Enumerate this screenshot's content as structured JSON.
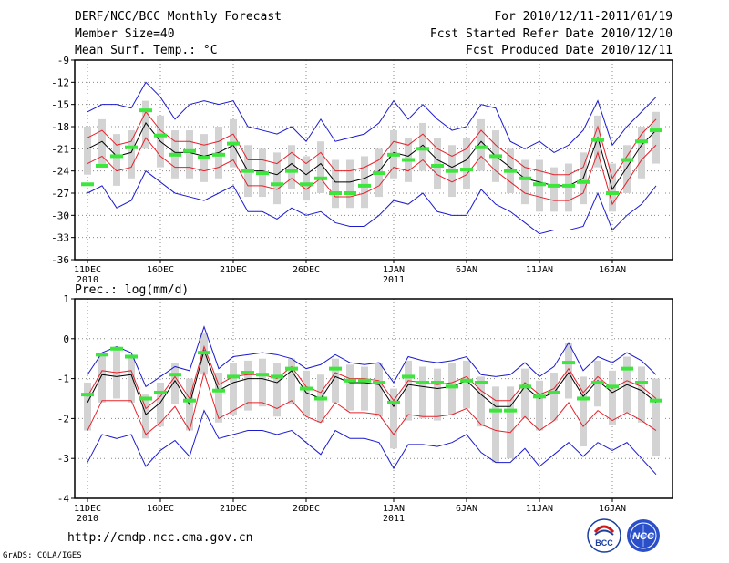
{
  "header": {
    "title": "DERF/NCC/BCC Monthly Forecast",
    "member_size": "Member Size=40",
    "variable": "Mean Surf. Temp.: °C",
    "fcst_period": "For 2010/12/11-2011/01/19",
    "started_date": "Fcst Started Refer Date 2010/12/10",
    "produced_date": "Fcst Produced Date 2010/12/11"
  },
  "footer": {
    "url": "http://cmdp.ncc.cma.gov.cn",
    "grads": "GrADS: COLA/IGES",
    "logo_left": "BCC",
    "logo_right": "NCC"
  },
  "colors": {
    "box": "#d3d3d3",
    "median": "#000000",
    "inner": "#e8202a",
    "outer": "#1a1ad0",
    "obs": "#3ce63c"
  },
  "chart_data": [
    {
      "type": "box-line",
      "title": "Mean Surf. Temp.: °C",
      "ylim": [
        -36,
        -9
      ],
      "yticks": [
        -36,
        -33,
        -30,
        -27,
        -24,
        -21,
        -18,
        -15,
        -12,
        -9
      ],
      "ytick_labels": [
        "-36",
        "-33",
        "-30",
        "-27",
        "-24",
        "-21",
        "-18",
        "-15",
        "-12",
        "-9"
      ],
      "xticks": [
        {
          "day": 1,
          "label": "11DEC",
          "sub": "2010"
        },
        {
          "day": 6,
          "label": "16DEC",
          "sub": ""
        },
        {
          "day": 11,
          "label": "21DEC",
          "sub": ""
        },
        {
          "day": 16,
          "label": "26DEC",
          "sub": ""
        },
        {
          "day": 22,
          "label": "1JAN",
          "sub": "2011"
        },
        {
          "day": 27,
          "label": "6JAN",
          "sub": ""
        },
        {
          "day": 32,
          "label": "11JAN",
          "sub": ""
        },
        {
          "day": 37,
          "label": "16JAN",
          "sub": ""
        }
      ],
      "days": [
        1,
        2,
        3,
        4,
        5,
        6,
        7,
        8,
        9,
        10,
        11,
        12,
        13,
        14,
        15,
        16,
        17,
        18,
        19,
        20,
        21,
        22,
        23,
        24,
        25,
        26,
        27,
        28,
        29,
        30,
        31,
        32,
        33,
        34,
        35,
        36,
        37,
        38,
        39,
        40
      ],
      "median": [
        -21.0,
        -20.0,
        -22.0,
        -21.5,
        -17.5,
        -20.0,
        -21.5,
        -21.5,
        -22.0,
        -21.5,
        -20.5,
        -24.0,
        -24.0,
        -24.5,
        -23.0,
        -24.5,
        -23.0,
        -25.5,
        -25.5,
        -25.0,
        -24.0,
        -21.5,
        -22.0,
        -20.5,
        -22.5,
        -23.5,
        -22.5,
        -20.0,
        -22.0,
        -23.5,
        -25.0,
        -25.5,
        -26.0,
        -26.0,
        -25.0,
        -19.5,
        -26.5,
        -23.5,
        -20.5,
        -18.5
      ],
      "upper_inner": [
        -19.5,
        -18.5,
        -20.5,
        -20.0,
        -16.0,
        -18.5,
        -20.0,
        -20.0,
        -20.5,
        -20.0,
        -19.0,
        -22.5,
        -22.5,
        -23.0,
        -21.5,
        -23.0,
        -21.5,
        -24.0,
        -24.0,
        -23.5,
        -22.5,
        -20.0,
        -20.5,
        -19.0,
        -21.0,
        -22.0,
        -21.0,
        -18.5,
        -20.5,
        -22.0,
        -23.5,
        -24.0,
        -24.5,
        -24.5,
        -23.5,
        -18.0,
        -25.0,
        -22.0,
        -19.0,
        -17.0
      ],
      "lower_inner": [
        -23.0,
        -22.0,
        -24.0,
        -23.5,
        -19.5,
        -22.0,
        -23.5,
        -23.5,
        -24.0,
        -23.5,
        -22.5,
        -26.0,
        -26.0,
        -26.5,
        -25.0,
        -26.5,
        -25.0,
        -27.5,
        -27.5,
        -27.0,
        -26.0,
        -23.5,
        -24.0,
        -22.5,
        -24.5,
        -25.5,
        -24.5,
        -22.0,
        -24.0,
        -25.5,
        -27.0,
        -27.5,
        -28.0,
        -28.0,
        -27.0,
        -21.5,
        -28.5,
        -25.5,
        -22.5,
        -20.5
      ],
      "upper_outer": [
        -16.0,
        -15.0,
        -15.0,
        -15.5,
        -12.0,
        -14.0,
        -17.0,
        -15.0,
        -14.5,
        -15.0,
        -14.5,
        -18.0,
        -18.5,
        -19.0,
        -18.0,
        -20.0,
        -17.0,
        -20.0,
        -19.5,
        -19.0,
        -17.5,
        -14.5,
        -17.0,
        -15.0,
        -17.0,
        -18.5,
        -18.0,
        -15.0,
        -15.5,
        -20.0,
        -21.0,
        -20.0,
        -21.5,
        -20.5,
        -18.5,
        -14.5,
        -20.5,
        -18.0,
        -16.0,
        -14.0
      ],
      "lower_outer": [
        -27.0,
        -26.0,
        -29.0,
        -28.0,
        -24.0,
        -25.5,
        -27.0,
        -27.5,
        -28.0,
        -27.0,
        -26.0,
        -29.5,
        -29.5,
        -30.5,
        -29.0,
        -30.0,
        -29.5,
        -31.0,
        -31.5,
        -31.5,
        -30.0,
        -28.0,
        -28.5,
        -27.0,
        -29.5,
        -30.0,
        -30.0,
        -26.5,
        -28.5,
        -29.5,
        -31.0,
        -32.5,
        -32.0,
        -32.0,
        -31.5,
        -27.0,
        -32.0,
        -30.0,
        -28.5,
        -26.0
      ],
      "box_top": [
        -18.0,
        -17.0,
        -19.0,
        -18.5,
        -14.5,
        -16.5,
        -18.5,
        -18.5,
        -19.0,
        -18.0,
        -17.0,
        -20.5,
        -21.0,
        -21.5,
        -20.5,
        -22.0,
        -20.0,
        -22.5,
        -22.5,
        -22.0,
        -21.0,
        -18.5,
        -19.5,
        -17.5,
        -19.5,
        -20.5,
        -19.5,
        -17.0,
        -18.5,
        -21.0,
        -22.5,
        -22.5,
        -23.5,
        -23.0,
        -21.5,
        -16.5,
        -23.0,
        -20.5,
        -18.0,
        -16.0
      ],
      "box_bottom": [
        -24.5,
        -23.5,
        -26.0,
        -25.0,
        -21.0,
        -23.5,
        -25.0,
        -25.0,
        -25.5,
        -25.0,
        -23.5,
        -27.5,
        -27.5,
        -28.5,
        -26.5,
        -28.0,
        -27.0,
        -29.0,
        -29.0,
        -29.0,
        -27.5,
        -25.0,
        -25.5,
        -24.0,
        -26.5,
        -27.5,
        -26.5,
        -24.0,
        -25.5,
        -27.0,
        -28.5,
        -29.5,
        -29.5,
        -29.5,
        -28.5,
        -23.5,
        -29.5,
        -27.0,
        -25.0,
        -23.0
      ],
      "observed": [
        -25.8,
        -23.3,
        -22.0,
        -20.8,
        -15.8,
        -19.2,
        -21.8,
        -21.3,
        -22.2,
        -21.8,
        -20.3,
        -24.0,
        -24.3,
        -25.8,
        -24.0,
        -25.8,
        -25.0,
        -27.0,
        -27.0,
        -26.0,
        -24.3,
        -21.8,
        -22.5,
        -21.0,
        -23.3,
        -24.0,
        -23.8,
        -20.8,
        -22.0,
        -24.0,
        -25.0,
        -25.8,
        -26.0,
        -26.0,
        -25.5,
        -19.8,
        -27.0,
        -22.5,
        -20.0,
        -18.5
      ]
    },
    {
      "type": "box-line",
      "title": "Prec.: log(mm/d)",
      "ylim": [
        -4,
        1
      ],
      "yticks": [
        -4,
        -3,
        -2,
        -1,
        0,
        1
      ],
      "ytick_labels": [
        "-4",
        "-3",
        "-2",
        "-1",
        "0",
        "1"
      ],
      "xticks": [
        {
          "day": 1,
          "label": "11DEC",
          "sub": "2010"
        },
        {
          "day": 6,
          "label": "16DEC",
          "sub": ""
        },
        {
          "day": 11,
          "label": "21DEC",
          "sub": ""
        },
        {
          "day": 16,
          "label": "26DEC",
          "sub": ""
        },
        {
          "day": 22,
          "label": "1JAN",
          "sub": "2011"
        },
        {
          "day": 27,
          "label": "6JAN",
          "sub": ""
        },
        {
          "day": 32,
          "label": "11JAN",
          "sub": ""
        },
        {
          "day": 37,
          "label": "16JAN",
          "sub": ""
        }
      ],
      "days": [
        1,
        2,
        3,
        4,
        5,
        6,
        7,
        8,
        9,
        10,
        11,
        12,
        13,
        14,
        15,
        16,
        17,
        18,
        19,
        20,
        21,
        22,
        23,
        24,
        25,
        26,
        27,
        28,
        29,
        30,
        31,
        32,
        33,
        34,
        35,
        36,
        37,
        38,
        39,
        40
      ],
      "median": [
        -1.6,
        -0.9,
        -0.95,
        -0.9,
        -1.9,
        -1.6,
        -1.05,
        -1.65,
        -0.3,
        -1.3,
        -1.1,
        -1.0,
        -1.0,
        -1.1,
        -0.8,
        -1.35,
        -1.5,
        -0.95,
        -1.1,
        -1.1,
        -1.15,
        -1.7,
        -1.15,
        -1.2,
        -1.25,
        -1.2,
        -1.05,
        -1.4,
        -1.7,
        -1.7,
        -1.2,
        -1.5,
        -1.35,
        -0.85,
        -1.45,
        -1.05,
        -1.35,
        -1.15,
        -1.3,
        -1.6
      ],
      "upper_inner": [
        -1.45,
        -0.8,
        -0.85,
        -0.8,
        -1.75,
        -1.45,
        -0.95,
        -1.5,
        -0.2,
        -1.15,
        -0.95,
        -0.9,
        -0.9,
        -1.0,
        -0.7,
        -1.2,
        -1.35,
        -0.85,
        -1.0,
        -1.0,
        -1.05,
        -1.55,
        -1.05,
        -1.1,
        -1.15,
        -1.1,
        -0.95,
        -1.3,
        -1.55,
        -1.55,
        -1.1,
        -1.4,
        -1.25,
        -0.75,
        -1.35,
        -0.95,
        -1.25,
        -1.05,
        -1.2,
        -1.5
      ],
      "lower_inner": [
        -2.3,
        -1.55,
        -1.55,
        -1.55,
        -2.4,
        -2.1,
        -1.7,
        -2.3,
        -0.85,
        -2.0,
        -1.8,
        -1.6,
        -1.6,
        -1.75,
        -1.55,
        -1.95,
        -2.1,
        -1.6,
        -1.85,
        -1.85,
        -1.9,
        -2.4,
        -1.9,
        -1.95,
        -1.95,
        -1.9,
        -1.75,
        -2.15,
        -2.3,
        -2.35,
        -1.95,
        -2.3,
        -2.05,
        -1.6,
        -2.2,
        -1.8,
        -2.05,
        -1.85,
        -2.05,
        -2.3
      ],
      "upper_outer": [
        -0.9,
        -0.35,
        -0.2,
        -0.35,
        -1.2,
        -0.95,
        -0.7,
        -0.8,
        0.3,
        -0.75,
        -0.45,
        -0.4,
        -0.35,
        -0.4,
        -0.5,
        -0.75,
        -0.65,
        -0.4,
        -0.6,
        -0.65,
        -0.6,
        -1.1,
        -0.45,
        -0.55,
        -0.6,
        -0.55,
        -0.45,
        -0.9,
        -0.95,
        -0.9,
        -0.6,
        -0.95,
        -0.7,
        -0.1,
        -0.8,
        -0.45,
        -0.6,
        -0.35,
        -0.55,
        -0.9
      ],
      "lower_outer": [
        -3.1,
        -2.4,
        -2.5,
        -2.4,
        -3.2,
        -2.8,
        -2.55,
        -2.95,
        -1.8,
        -2.5,
        -2.4,
        -2.3,
        -2.3,
        -2.4,
        -2.3,
        -2.6,
        -2.9,
        -2.3,
        -2.5,
        -2.5,
        -2.6,
        -3.25,
        -2.65,
        -2.65,
        -2.7,
        -2.6,
        -2.4,
        -2.85,
        -3.1,
        -3.1,
        -2.75,
        -3.2,
        -2.9,
        -2.6,
        -2.95,
        -2.6,
        -2.8,
        -2.6,
        -3.0,
        -3.4
      ],
      "box_top": [
        -1.1,
        -0.4,
        -0.2,
        -0.4,
        -1.4,
        -1.1,
        -0.6,
        -1.0,
        0.15,
        -0.85,
        -0.6,
        -0.55,
        -0.5,
        -0.6,
        -0.5,
        -0.8,
        -0.9,
        -0.5,
        -0.65,
        -0.7,
        -0.6,
        -1.25,
        -0.55,
        -0.7,
        -0.75,
        -0.6,
        -0.55,
        -0.95,
        -1.2,
        -1.2,
        -0.75,
        -1.05,
        -0.85,
        -0.1,
        -0.95,
        -0.55,
        -0.8,
        -0.45,
        -0.7,
        -1.0
      ],
      "box_bottom": [
        -2.3,
        -1.6,
        -1.5,
        -1.6,
        -2.5,
        -2.2,
        -1.65,
        -2.3,
        -0.9,
        -2.1,
        -1.9,
        -1.8,
        -1.7,
        -1.95,
        -1.65,
        -1.95,
        -2.1,
        -1.6,
        -1.8,
        -1.8,
        -1.95,
        -2.75,
        -2.05,
        -2.0,
        -2.05,
        -1.9,
        -1.75,
        -2.2,
        -3.1,
        -3.0,
        -2.0,
        -2.3,
        -2.05,
        -1.5,
        -2.7,
        -1.7,
        -2.15,
        -1.85,
        -2.1,
        -2.95
      ],
      "observed": [
        -1.4,
        -0.4,
        -0.25,
        -0.45,
        -1.5,
        -1.35,
        -0.9,
        -1.55,
        -0.35,
        -1.3,
        -0.95,
        -0.85,
        -0.9,
        -0.95,
        -0.75,
        -1.25,
        -1.5,
        -0.75,
        -1.05,
        -1.05,
        -1.1,
        -1.6,
        -0.95,
        -1.1,
        -1.1,
        -1.2,
        -1.05,
        -1.1,
        -1.8,
        -1.8,
        -1.2,
        -1.45,
        -1.35,
        -0.6,
        -1.5,
        -1.1,
        -1.2,
        -0.75,
        -1.1,
        -1.55
      ]
    }
  ]
}
